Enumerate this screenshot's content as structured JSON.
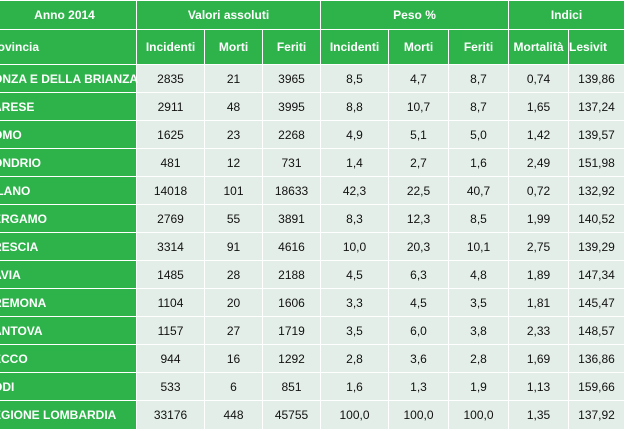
{
  "header": {
    "year_label": "Anno 2014",
    "groups": [
      "Valori assoluti",
      "Peso %",
      "Indici"
    ],
    "columns": [
      "rovincia",
      "Incidenti",
      "Morti",
      "Feriti",
      "Incidenti",
      "Morti",
      "Feriti",
      "Mortalità",
      "Lesivit"
    ]
  },
  "rows": [
    {
      "provincia": "ONZA E DELLA BRIANZA",
      "cells": [
        "2835",
        "21",
        "3965",
        "8,5",
        "4,7",
        "8,7",
        "0,74",
        "139,86"
      ]
    },
    {
      "provincia": "ARESE",
      "cells": [
        "2911",
        "48",
        "3995",
        "8,8",
        "10,7",
        "8,7",
        "1,65",
        "137,24"
      ]
    },
    {
      "provincia": "OMO",
      "cells": [
        "1625",
        "23",
        "2268",
        "4,9",
        "5,1",
        "5,0",
        "1,42",
        "139,57"
      ]
    },
    {
      "provincia": "ONDRIO",
      "cells": [
        "481",
        "12",
        "731",
        "1,4",
        "2,7",
        "1,6",
        "2,49",
        "151,98"
      ]
    },
    {
      "provincia": "ILANO",
      "cells": [
        "14018",
        "101",
        "18633",
        "42,3",
        "22,5",
        "40,7",
        "0,72",
        "132,92"
      ]
    },
    {
      "provincia": "ERGAMO",
      "cells": [
        "2769",
        "55",
        "3891",
        "8,3",
        "12,3",
        "8,5",
        "1,99",
        "140,52"
      ]
    },
    {
      "provincia": "RESCIA",
      "cells": [
        "3314",
        "91",
        "4616",
        "10,0",
        "20,3",
        "10,1",
        "2,75",
        "139,29"
      ]
    },
    {
      "provincia": "AVIA",
      "cells": [
        "1485",
        "28",
        "2188",
        "4,5",
        "6,3",
        "4,8",
        "1,89",
        "147,34"
      ]
    },
    {
      "provincia": "REMONA",
      "cells": [
        "1104",
        "20",
        "1606",
        "3,3",
        "4,5",
        "3,5",
        "1,81",
        "145,47"
      ]
    },
    {
      "provincia": "ANTOVA",
      "cells": [
        "1157",
        "27",
        "1719",
        "3,5",
        "6,0",
        "3,8",
        "2,33",
        "148,57"
      ]
    },
    {
      "provincia": "ECCO",
      "cells": [
        "944",
        "16",
        "1292",
        "2,8",
        "3,6",
        "2,8",
        "1,69",
        "136,86"
      ]
    },
    {
      "provincia": "ODI",
      "cells": [
        "533",
        "6",
        "851",
        "1,6",
        "1,3",
        "1,9",
        "1,13",
        "159,66"
      ]
    },
    {
      "provincia": "EGIONE LOMBARDIA",
      "cells": [
        "33176",
        "448",
        "45755",
        "100,0",
        "100,0",
        "100,0",
        "1,35",
        "137,92"
      ]
    }
  ]
}
